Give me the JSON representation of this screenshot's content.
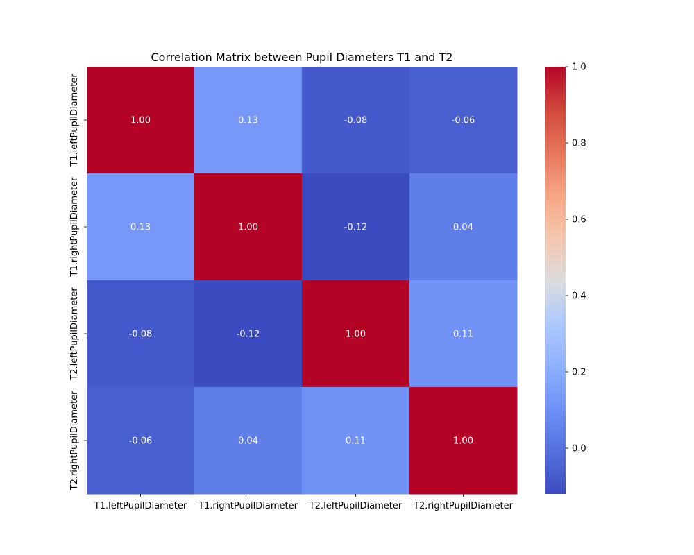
{
  "chart_data": {
    "type": "heatmap",
    "title": "Correlation Matrix between Pupil Diameters T1 and T2",
    "x_labels": [
      "T1.leftPupilDiameter",
      "T1.rightPupilDiameter",
      "T2.leftPupilDiameter",
      "T2.rightPupilDiameter"
    ],
    "y_labels": [
      "T1.leftPupilDiameter",
      "T1.rightPupilDiameter",
      "T2.leftPupilDiameter",
      "T2.rightPupilDiameter"
    ],
    "values": [
      [
        1.0,
        0.13,
        -0.08,
        -0.06
      ],
      [
        0.13,
        1.0,
        -0.12,
        0.04
      ],
      [
        -0.08,
        -0.12,
        1.0,
        0.11
      ],
      [
        -0.06,
        0.04,
        0.11,
        1.0
      ]
    ],
    "value_labels": [
      [
        "1.00",
        "0.13",
        "-0.08",
        "-0.06"
      ],
      [
        "0.13",
        "1.00",
        "-0.12",
        "0.04"
      ],
      [
        "-0.08",
        "-0.12",
        "1.00",
        "0.11"
      ],
      [
        "-0.06",
        "0.04",
        "0.11",
        "1.00"
      ]
    ],
    "colormap": "coolwarm",
    "colorbar": {
      "range": [
        -0.12,
        1.0
      ],
      "ticks": [
        0.0,
        0.2,
        0.4,
        0.6,
        0.8,
        1.0
      ],
      "tick_labels": [
        "0.0",
        "0.2",
        "0.4",
        "0.6",
        "0.8",
        "1.0"
      ]
    }
  }
}
